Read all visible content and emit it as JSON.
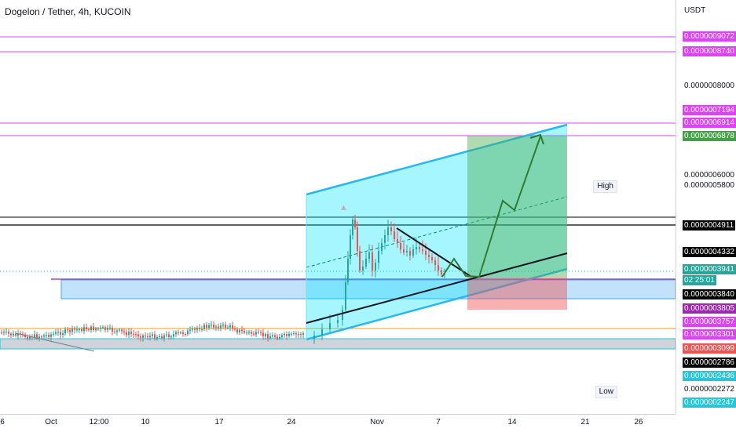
{
  "chart": {
    "title": "Dogelon / Tether, 4h, KUCOIN",
    "unit": "USDT"
  },
  "price_labels": [
    {
      "text": "0.0000009072",
      "bg": "#e040fb",
      "fg": "#ffffff"
    },
    {
      "text": "0.0000008740",
      "bg": "#e040fb",
      "fg": "#ffffff"
    },
    {
      "text": "0.0000007194",
      "bg": "#e040fb",
      "fg": "#ffffff"
    },
    {
      "text": "0.0000006914",
      "bg": "#e040fb",
      "fg": "#ffffff"
    },
    {
      "text": "0.0000006878",
      "bg": "#43a047",
      "fg": "#ffffff"
    },
    {
      "text": "0.0000004911",
      "bg": "#000000",
      "fg": "#ffffff"
    },
    {
      "text": "0.0000004332",
      "bg": "#000000",
      "fg": "#ffffff"
    },
    {
      "text": "0.0000003941",
      "bg": "#26a69a",
      "fg": "#ffffff"
    },
    {
      "text": "02:25:01",
      "bg": "#26a69a",
      "fg": "#ffffff"
    },
    {
      "text": "0.0000003840",
      "bg": "#000000",
      "fg": "#ffffff"
    },
    {
      "text": "0.0000003805",
      "bg": "#9c27b0",
      "fg": "#ffffff"
    },
    {
      "text": "0.0000003757",
      "bg": "#e040fb",
      "fg": "#ffffff"
    },
    {
      "text": "0.0000003301",
      "bg": "#e040fb",
      "fg": "#ffffff"
    },
    {
      "text": "0.0000003099",
      "bg": "#ef5350",
      "fg": "#ffffff"
    },
    {
      "text": "0.0000002786",
      "bg": "#000000",
      "fg": "#ffffff"
    },
    {
      "text": "0.0000002436",
      "bg": "#26c6da",
      "fg": "#ffffff"
    },
    {
      "text": "0.0000002247",
      "bg": "#26c6da",
      "fg": "#ffffff"
    }
  ],
  "price_ticks": [
    "0.0000008000",
    "0.0000006000",
    "0.0000005800",
    "0.0000002272"
  ],
  "high_label": "High",
  "low_label": "Low",
  "time_ticks": [
    "6",
    "Oct",
    "12:00",
    "10",
    "17",
    "24",
    "Nov",
    "7",
    "14",
    "21",
    "26"
  ],
  "colors": {
    "channel": "#00bcd4",
    "channel_fill": "#00e5ff",
    "target_zone": "#4caf50",
    "stop_zone": "#ef5350",
    "support_zone": "#90caf9",
    "magenta_line": "#e040fb",
    "up_candle": "#26a69a",
    "down_candle": "#ef5350"
  },
  "icons": {
    "path_arrow": "arrow-head-icon"
  }
}
